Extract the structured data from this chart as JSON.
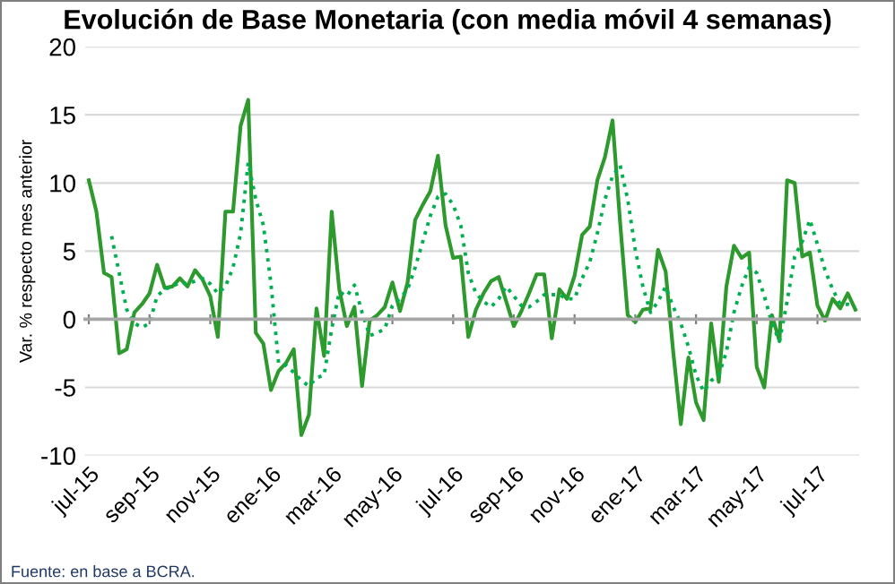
{
  "chart_data": {
    "type": "line",
    "title": "Evolución de Base Monetaria (con media móvil 4 semanas)",
    "ylabel": "Var. % respecto mes anterior",
    "categories": [
      "jul-15",
      null,
      null,
      null,
      null,
      null,
      null,
      null,
      "sep-15",
      null,
      null,
      null,
      null,
      null,
      null,
      null,
      "nov-15",
      null,
      null,
      null,
      null,
      null,
      null,
      null,
      "ene-16",
      null,
      null,
      null,
      null,
      null,
      null,
      null,
      "mar-16",
      null,
      null,
      null,
      null,
      null,
      null,
      null,
      "may-16",
      null,
      null,
      null,
      null,
      null,
      null,
      null,
      "jul-16",
      null,
      null,
      null,
      null,
      null,
      null,
      null,
      "sep-16",
      null,
      null,
      null,
      null,
      null,
      null,
      null,
      "nov-16",
      null,
      null,
      null,
      null,
      null,
      null,
      null,
      "ene-17",
      null,
      null,
      null,
      null,
      null,
      null,
      null,
      "mar-17",
      null,
      null,
      null,
      null,
      null,
      null,
      null,
      "may-17",
      null,
      null,
      null,
      null,
      null,
      null,
      null,
      "jul-17",
      null,
      null,
      null,
      null,
      null
    ],
    "series": [
      {
        "color": "#2e9a2e",
        "line_style": "solid",
        "values": [
          10.2,
          7.9,
          3.4,
          3.1,
          -2.5,
          -2.2,
          0.5,
          1.1,
          1.9,
          4.0,
          2.3,
          2.4,
          3.0,
          2.4,
          3.6,
          2.9,
          1.7,
          -1.3,
          7.9,
          7.9,
          14.2,
          16.1,
          -1.0,
          -1.8,
          -5.2,
          -3.8,
          -3.2,
          -2.2,
          -8.5,
          -7.0,
          0.8,
          -2.7,
          7.9,
          2.2,
          -0.5,
          0.9,
          -4.9,
          -0.1,
          0.3,
          0.9,
          2.7,
          0.6,
          2.7,
          7.3,
          8.4,
          9.4,
          12.0,
          6.9,
          4.5,
          4.6,
          -1.3,
          0.7,
          1.9,
          2.8,
          3.1,
          1.3,
          -0.5,
          0.6,
          1.9,
          3.3,
          3.3,
          -1.4,
          2.2,
          1.5,
          3.2,
          6.2,
          6.8,
          10.2,
          11.9,
          14.6,
          7.1,
          0.3,
          -0.2,
          0.7,
          0.8,
          5.1,
          3.5,
          -2.4,
          -7.7,
          -2.8,
          -6.1,
          -7.4,
          -0.3,
          -4.6,
          2.4,
          5.4,
          4.5,
          4.9,
          -3.5,
          -5.0,
          0.3,
          -1.6,
          10.2,
          10.0,
          4.6,
          4.9,
          1.0,
          -0.1,
          1.5,
          0.8,
          1.9,
          0.7
        ]
      },
      {
        "color": "#00b050",
        "line_style": "dotted",
        "values": [
          null,
          null,
          null,
          6.1,
          3.4,
          0.7,
          -0.3,
          -0.6,
          -0.3,
          1.7,
          2.2,
          2.4,
          2.7,
          2.6,
          2.8,
          3.0,
          2.6,
          1.9,
          2.4,
          3.8,
          6.3,
          11.5,
          8.8,
          6.9,
          2.6,
          -3.2,
          -3.4,
          -3.9,
          -4.5,
          -4.9,
          -4.3,
          -4.1,
          -0.7,
          2.0,
          1.7,
          2.5,
          0.5,
          -1.2,
          -1.0,
          -0.7,
          1.0,
          1.5,
          2.2,
          3.8,
          5.7,
          7.6,
          9.0,
          9.2,
          8.4,
          6.9,
          3.4,
          1.9,
          1.3,
          0.9,
          1.5,
          2.4,
          1.7,
          1.0,
          0.9,
          1.3,
          1.8,
          1.8,
          1.8,
          1.5,
          1.5,
          3.0,
          4.2,
          6.3,
          8.8,
          10.5,
          11.3,
          8.8,
          5.1,
          2.4,
          0.5,
          1.3,
          2.4,
          0.9,
          -0.3,
          -2.0,
          -4.1,
          -5.3,
          -4.5,
          -4.1,
          -2.4,
          0.5,
          2.4,
          3.8,
          3.4,
          1.7,
          -0.3,
          -1.6,
          1.3,
          4.6,
          5.7,
          7.3,
          5.5,
          3.6,
          2.2,
          1.1,
          1.1,
          0.9
        ]
      }
    ],
    "ylim": [
      -10,
      20
    ],
    "yticks": [
      -10,
      -5,
      0,
      5,
      10,
      15,
      20
    ],
    "grid": "y",
    "legend": false,
    "marker": "none",
    "annotations": [
      "Fuente: en base a BCRA."
    ]
  }
}
